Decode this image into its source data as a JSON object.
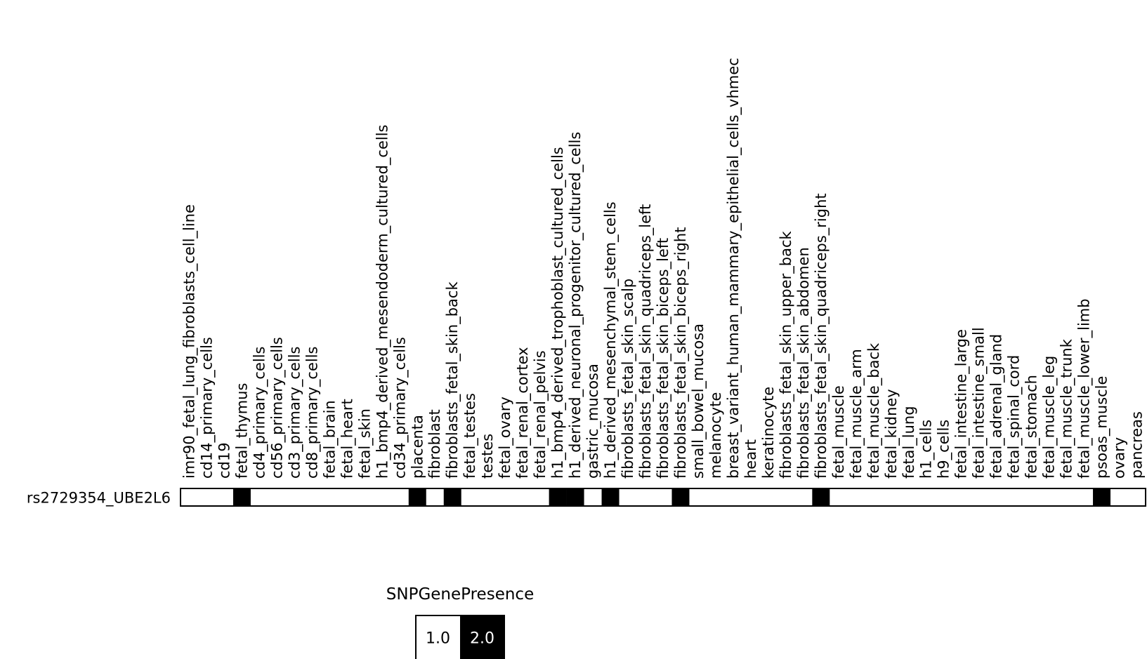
{
  "chart_data": {
    "type": "heatmap",
    "rows": [
      "rs2729354_UBE2L6"
    ],
    "columns": [
      "imr90_fetal_lung_fibroblasts_cell_line",
      "cd14_primary_cells",
      "cd19",
      "fetal_thymus",
      "cd4_primary_cells",
      "cd56_primary_cells",
      "cd3_primary_cells",
      "cd8_primary_cells",
      "fetal_brain",
      "fetal_heart",
      "fetal_skin",
      "h1_bmp4_derived_mesendoderm_cultured_cells",
      "cd34_primary_cells",
      "placenta",
      "fibroblast",
      "fibroblasts_fetal_skin_back",
      "fetal_testes",
      "testes",
      "fetal_ovary",
      "fetal_renal_cortex",
      "fetal_renal_pelvis",
      "h1_bmp4_derived_trophoblast_cultured_cells",
      "h1_derived_neuronal_progenitor_cultured_cells",
      "gastric_mucosa",
      "h1_derived_mesenchymal_stem_cells",
      "fibroblasts_fetal_skin_scalp",
      "fibroblasts_fetal_skin_quadriceps_left",
      "fibroblasts_fetal_skin_biceps_left",
      "fibroblasts_fetal_skin_biceps_right",
      "small_bowel_mucosa",
      "melanocyte",
      "breast_variant_human_mammary_epithelial_cells_vhmec",
      "heart",
      "keratinocyte",
      "fibroblasts_fetal_skin_upper_back",
      "fibroblasts_fetal_skin_abdomen",
      "fibroblasts_fetal_skin_quadriceps_right",
      "fetal_muscle",
      "fetal_muscle_arm",
      "fetal_muscle_back",
      "fetal_kidney",
      "fetal_lung",
      "h1_cells",
      "h9_cells",
      "fetal_intestine_large",
      "fetal_intestine_small",
      "fetal_adrenal_gland",
      "fetal_spinal_cord",
      "fetal_stomach",
      "fetal_muscle_leg",
      "fetal_muscle_trunk",
      "fetal_muscle_lower_limb",
      "psoas_muscle",
      "ovary",
      "pancreas"
    ],
    "values": [
      [
        1,
        1,
        1,
        2,
        1,
        1,
        1,
        1,
        1,
        1,
        1,
        1,
        1,
        2,
        1,
        2,
        1,
        1,
        1,
        1,
        1,
        2,
        2,
        1,
        2,
        1,
        1,
        1,
        2,
        1,
        1,
        1,
        1,
        1,
        1,
        1,
        2,
        1,
        1,
        1,
        1,
        1,
        1,
        1,
        1,
        1,
        1,
        1,
        1,
        1,
        1,
        1,
        2,
        1,
        1
      ]
    ],
    "legend": {
      "title": "SNPGenePresence",
      "entries": [
        {
          "label": "1.0",
          "value": 1,
          "color": "#ffffff",
          "text_color": "#000000"
        },
        {
          "label": "2.0",
          "value": 2,
          "color": "#000000",
          "text_color": "#ffffff"
        }
      ]
    },
    "colors": {
      "1": "#ffffff",
      "2": "#000000"
    }
  }
}
